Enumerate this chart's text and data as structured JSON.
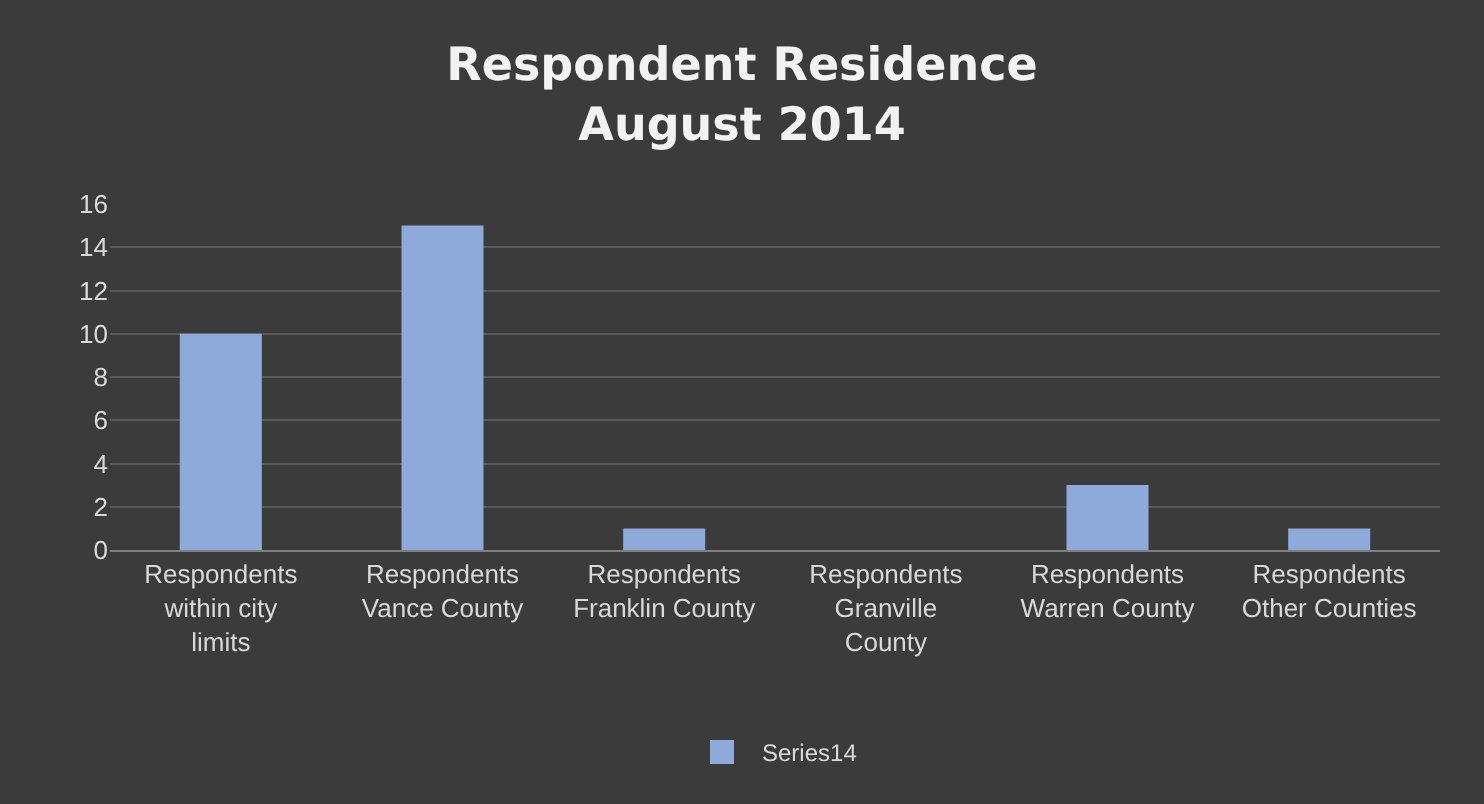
{
  "chart_data": {
    "type": "bar",
    "title": "Respondent Residence\nAugust 2014",
    "categories": [
      "Respondents within city limits",
      "Respondents Vance County",
      "Respondents Franklin County",
      "Respondents Granville County",
      "Respondents Warren County",
      "Respondents Other Counties"
    ],
    "series": [
      {
        "name": "Series14",
        "color": "#8eaadb",
        "values": [
          10,
          15,
          1,
          0,
          3,
          1
        ]
      }
    ],
    "ylim": [
      0,
      16
    ],
    "yticks": [
      0,
      2,
      4,
      6,
      8,
      10,
      12,
      14,
      16
    ],
    "grid": "y",
    "legend": "bottom"
  }
}
